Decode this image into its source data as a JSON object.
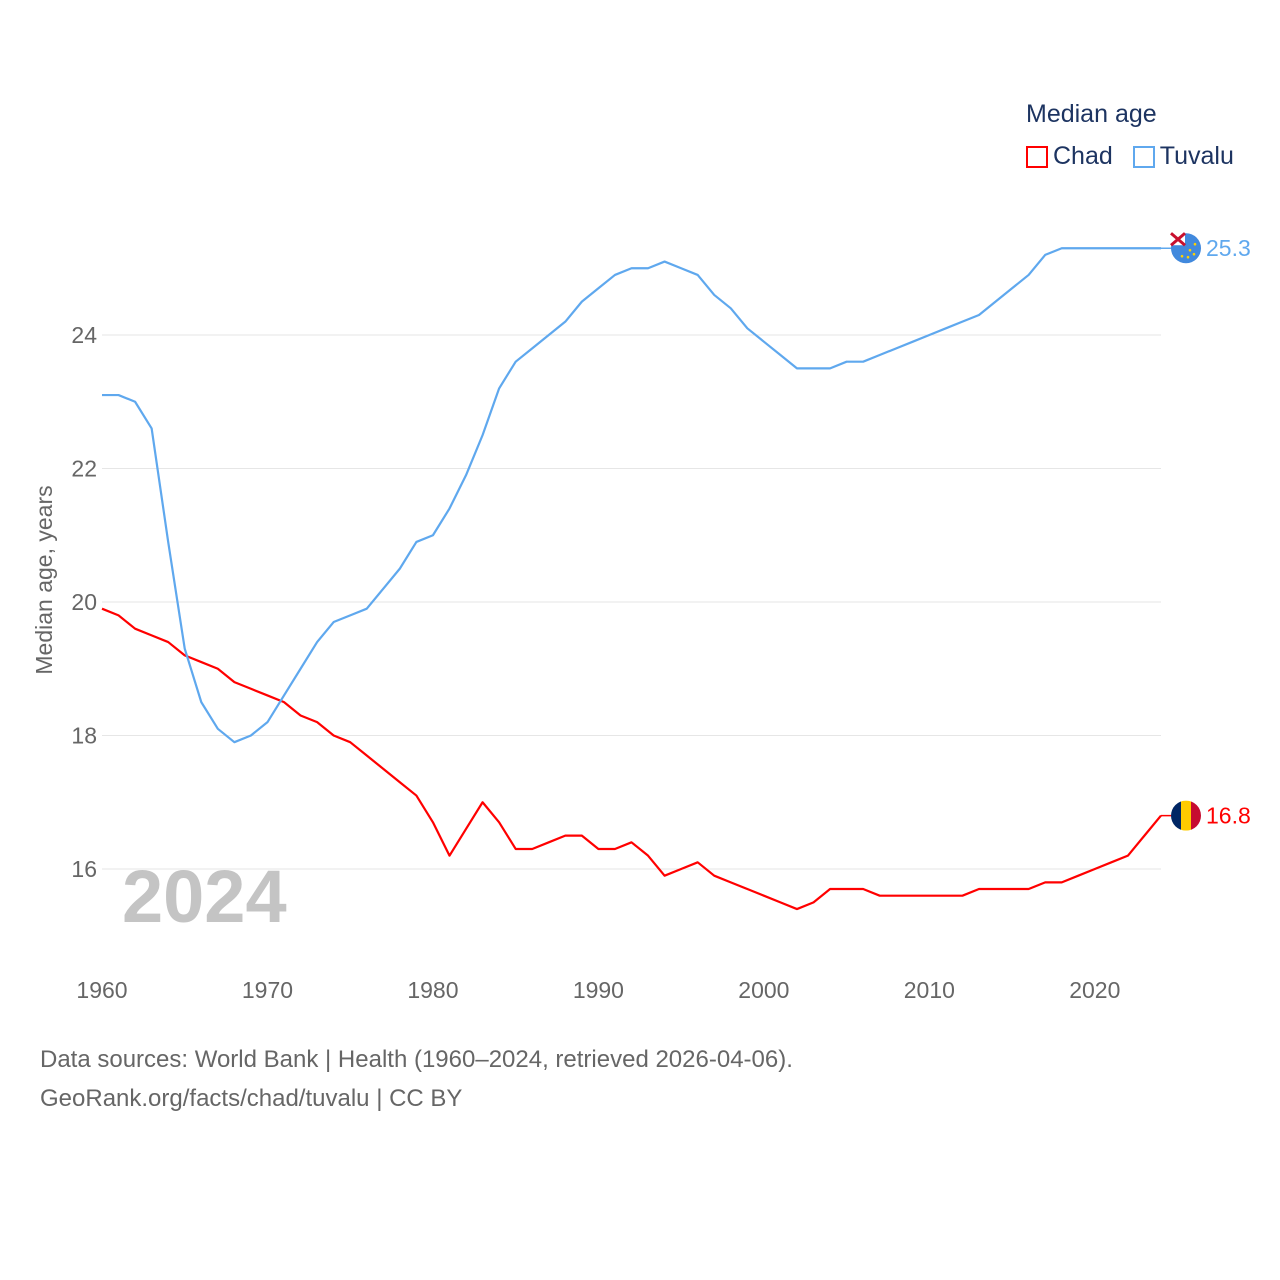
{
  "chart_data": {
    "type": "line",
    "title": "Median age",
    "xlabel": "",
    "ylabel": "Median age, years",
    "xlim": [
      1960,
      2024
    ],
    "ylim": [
      15,
      25.6
    ],
    "yticks": [
      16,
      18,
      20,
      22,
      24
    ],
    "xticks": [
      1960,
      1970,
      1980,
      1990,
      2000,
      2010,
      2020
    ],
    "grid": true,
    "legend_position": "top-right",
    "year_label": "2024",
    "x": [
      1960,
      1961,
      1962,
      1963,
      1964,
      1965,
      1966,
      1967,
      1968,
      1969,
      1970,
      1971,
      1972,
      1973,
      1974,
      1975,
      1976,
      1977,
      1978,
      1979,
      1980,
      1981,
      1982,
      1983,
      1984,
      1985,
      1986,
      1987,
      1988,
      1989,
      1990,
      1991,
      1992,
      1993,
      1994,
      1995,
      1996,
      1997,
      1998,
      1999,
      2000,
      2001,
      2002,
      2003,
      2004,
      2005,
      2006,
      2007,
      2008,
      2009,
      2010,
      2011,
      2012,
      2013,
      2014,
      2015,
      2016,
      2017,
      2018,
      2019,
      2020,
      2021,
      2022,
      2023,
      2024
    ],
    "series": [
      {
        "name": "Chad",
        "color": "#ff0000",
        "end_label": "16.8",
        "values": [
          19.9,
          19.8,
          19.6,
          19.5,
          19.4,
          19.2,
          19.1,
          19.0,
          18.8,
          18.7,
          18.6,
          18.5,
          18.3,
          18.2,
          18.0,
          17.9,
          17.7,
          17.5,
          17.3,
          17.1,
          16.7,
          16.2,
          16.6,
          17.0,
          16.7,
          16.3,
          16.3,
          16.4,
          16.5,
          16.5,
          16.3,
          16.3,
          16.4,
          16.2,
          15.9,
          16.0,
          16.1,
          15.9,
          15.8,
          15.7,
          15.6,
          15.5,
          15.4,
          15.5,
          15.7,
          15.7,
          15.7,
          15.6,
          15.6,
          15.6,
          15.6,
          15.6,
          15.6,
          15.7,
          15.7,
          15.7,
          15.7,
          15.8,
          15.8,
          15.9,
          16.0,
          16.1,
          16.2,
          16.5,
          16.8
        ]
      },
      {
        "name": "Tuvalu",
        "color": "#5fa8ee",
        "end_label": "25.3",
        "values": [
          23.1,
          23.1,
          23.0,
          22.6,
          20.9,
          19.3,
          18.5,
          18.1,
          17.9,
          18.0,
          18.2,
          18.6,
          19.0,
          19.4,
          19.7,
          19.8,
          19.9,
          20.2,
          20.5,
          20.9,
          21.0,
          21.4,
          21.9,
          22.5,
          23.2,
          23.6,
          23.8,
          24.0,
          24.2,
          24.5,
          24.7,
          24.9,
          25.0,
          25.0,
          25.1,
          25.0,
          24.9,
          24.6,
          24.4,
          24.1,
          23.9,
          23.7,
          23.5,
          23.5,
          23.5,
          23.6,
          23.6,
          23.7,
          23.8,
          23.9,
          24.0,
          24.1,
          24.2,
          24.3,
          24.5,
          24.7,
          24.9,
          25.2,
          25.3,
          25.3,
          25.3,
          25.3,
          25.3,
          25.3,
          25.3
        ]
      }
    ]
  },
  "footer": {
    "line1": "Data sources: World Bank | Health (1960–2024, retrieved 2026-04-06).",
    "line2": "GeoRank.org/facts/chad/tuvalu | CC BY"
  }
}
